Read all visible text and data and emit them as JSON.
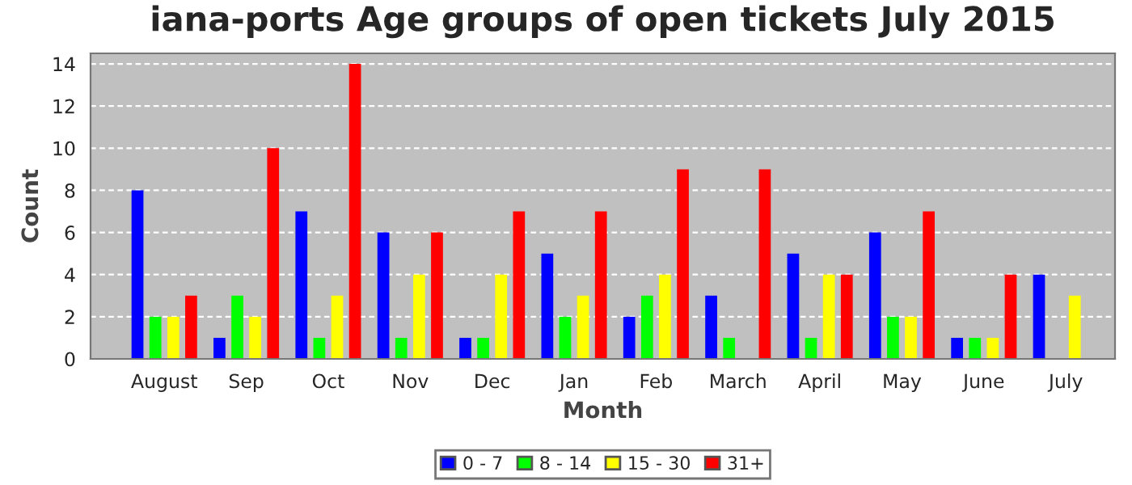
{
  "chart_data": {
    "type": "bar",
    "title": "iana-ports Age groups of open tickets July 2015",
    "xlabel": "Month",
    "ylabel": "Count",
    "categories": [
      "August",
      "Sep",
      "Oct",
      "Nov",
      "Dec",
      "Jan",
      "Feb",
      "March",
      "April",
      "May",
      "June",
      "July"
    ],
    "series": [
      {
        "name": "0 - 7",
        "color": "#0000ff",
        "values": [
          8,
          1,
          7,
          6,
          1,
          5,
          2,
          3,
          5,
          6,
          1,
          4
        ]
      },
      {
        "name": "8 - 14",
        "color": "#00ff00",
        "values": [
          2,
          3,
          1,
          1,
          1,
          2,
          3,
          1,
          1,
          2,
          1,
          null
        ]
      },
      {
        "name": "15 - 30",
        "color": "#ffff00",
        "values": [
          2,
          2,
          3,
          4,
          4,
          3,
          4,
          null,
          4,
          2,
          1,
          3
        ]
      },
      {
        "name": "31+",
        "color": "#ff0000",
        "values": [
          3,
          10,
          14,
          6,
          7,
          7,
          9,
          9,
          4,
          7,
          4,
          null
        ]
      }
    ],
    "ylim": [
      0,
      14.5
    ],
    "yticks": [
      0,
      2,
      4,
      6,
      8,
      10,
      12,
      14
    ],
    "grid": "y",
    "legend": "bottom"
  }
}
